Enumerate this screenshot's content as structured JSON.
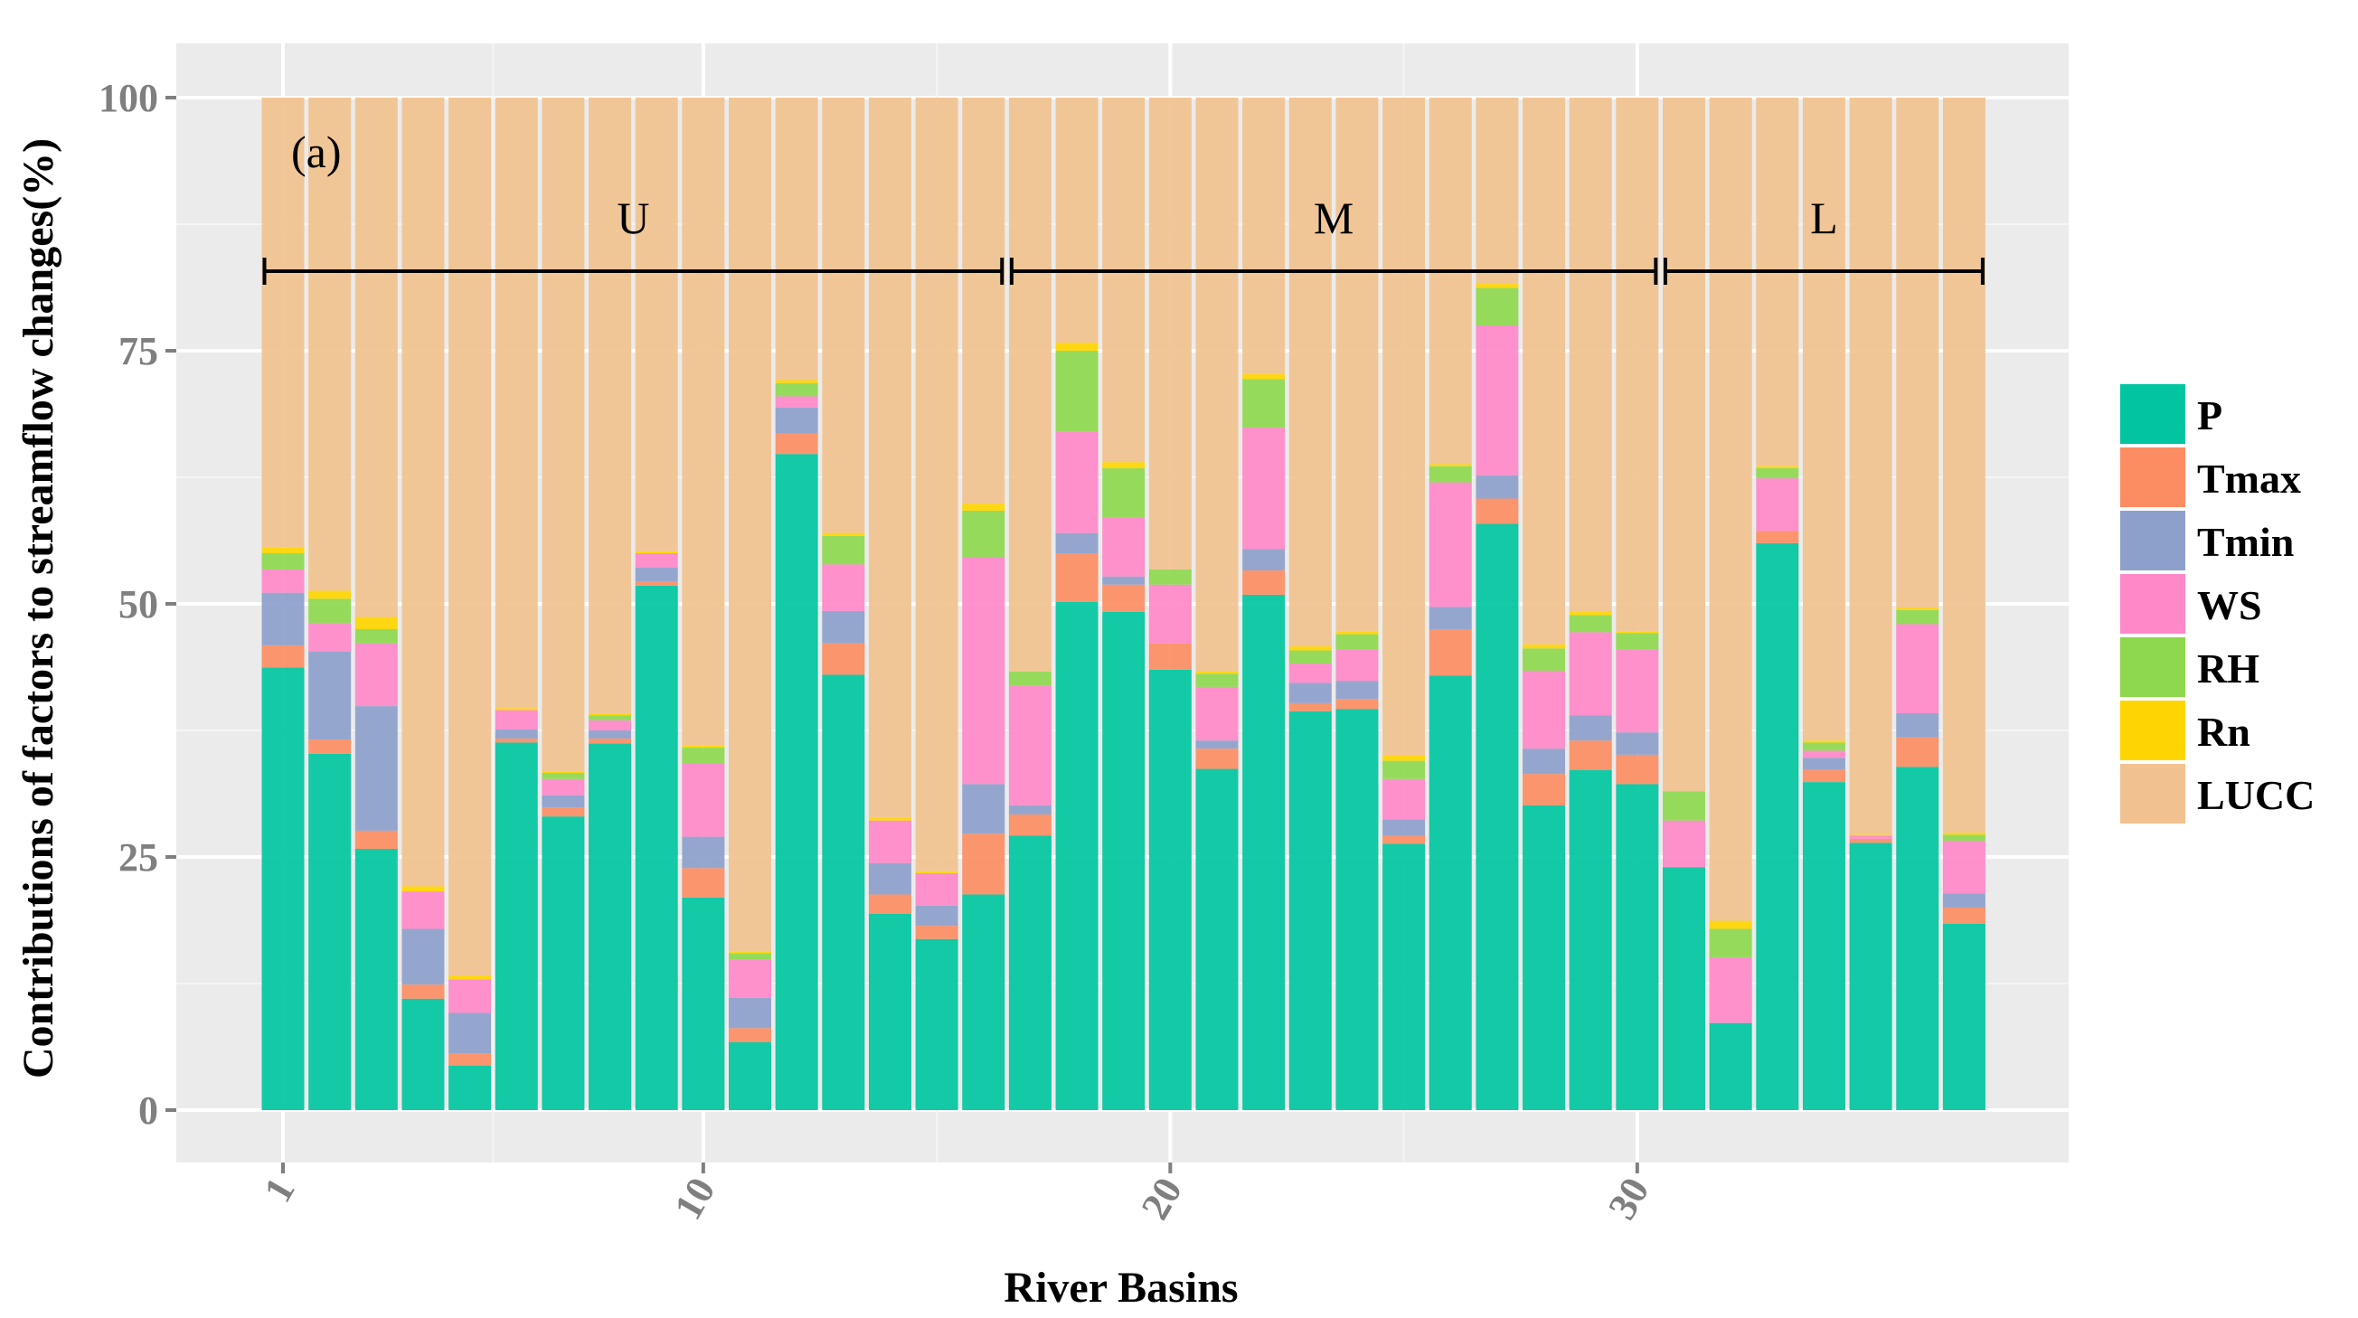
{
  "chart_data": {
    "type": "bar",
    "stacked": true,
    "panel_label": "(a)",
    "title": "",
    "xlabel": "River Basins",
    "ylabel": "Contributions of factors to  streamflow changes(%)",
    "ylim": [
      0,
      100
    ],
    "yticks": [
      "0",
      "25",
      "50",
      "75",
      "100"
    ],
    "xticks": [
      "1",
      "10",
      "20",
      "30"
    ],
    "categories": [
      "1",
      "2",
      "3",
      "4",
      "5",
      "6",
      "7",
      "8",
      "9",
      "10",
      "11",
      "12",
      "13",
      "14",
      "15",
      "16",
      "17",
      "18",
      "19",
      "20",
      "21",
      "22",
      "23",
      "24",
      "25",
      "26",
      "27",
      "28",
      "29",
      "30",
      "31",
      "32",
      "33",
      "34",
      "35",
      "36",
      "37"
    ],
    "legend": {
      "placement": "right"
    },
    "groups": [
      {
        "label": "U",
        "from": 1,
        "to": 16
      },
      {
        "label": "M",
        "from": 17,
        "to": 30
      },
      {
        "label": "L",
        "from": 31,
        "to": 37
      }
    ],
    "series": [
      {
        "name": "P",
        "color": "#00c5a0",
        "values": [
          43.7,
          35.2,
          25.8,
          11.0,
          4.4,
          36.3,
          29.0,
          36.2,
          51.8,
          21.0,
          6.7,
          64.8,
          43.0,
          19.4,
          16.9,
          21.3,
          27.1,
          50.2,
          49.2,
          43.5,
          33.7,
          50.9,
          39.4,
          39.6,
          26.3,
          42.9,
          57.9,
          30.1,
          33.6,
          32.2,
          24.0,
          8.6,
          56.0,
          32.4,
          26.4,
          33.9,
          18.4
        ]
      },
      {
        "name": "Tmax",
        "color": "#fc8d62",
        "values": [
          2.2,
          1.4,
          1.8,
          1.4,
          1.2,
          0.4,
          0.9,
          0.5,
          0.4,
          2.9,
          1.4,
          2.0,
          3.1,
          1.9,
          1.3,
          6.0,
          2.1,
          4.8,
          2.7,
          2.6,
          2.0,
          2.4,
          0.8,
          1.0,
          0.8,
          4.6,
          2.5,
          3.1,
          2.9,
          2.9,
          0,
          0,
          1.2,
          1.2,
          0.4,
          2.9,
          1.6
        ]
      },
      {
        "name": "Tmin",
        "color": "#8da0cb",
        "values": [
          5.2,
          8.7,
          12.3,
          5.5,
          4.0,
          0.9,
          1.2,
          0.8,
          1.4,
          3.1,
          3.0,
          2.6,
          3.2,
          3.1,
          2.0,
          4.9,
          0.9,
          2.0,
          0.8,
          0,
          0.8,
          2.1,
          2.0,
          1.8,
          1.6,
          2.2,
          2.3,
          2.5,
          2.5,
          2.2,
          0,
          0,
          0,
          1.2,
          0,
          2.4,
          1.4
        ]
      },
      {
        "name": "WS",
        "color": "#ff88c9",
        "values": [
          2.3,
          2.8,
          6.2,
          3.7,
          3.3,
          1.9,
          1.6,
          1.0,
          1.4,
          7.2,
          3.8,
          1.1,
          4.6,
          4.2,
          3.2,
          22.4,
          11.8,
          10.0,
          5.8,
          5.8,
          5.3,
          12.0,
          1.9,
          3.1,
          4.0,
          12.3,
          14.8,
          7.7,
          8.2,
          8.2,
          4.6,
          6.5,
          5.2,
          0.7,
          0.3,
          8.8,
          5.2
        ]
      },
      {
        "name": "RH",
        "color": "#8ed84f",
        "values": [
          1.6,
          2.4,
          1.4,
          0,
          0,
          0,
          0.6,
          0.5,
          0,
          1.6,
          0.6,
          1.3,
          2.8,
          0,
          0,
          4.6,
          1.4,
          8.0,
          4.9,
          1.5,
          1.3,
          4.8,
          1.3,
          1.5,
          1.8,
          1.6,
          3.7,
          2.2,
          1.7,
          1.6,
          2.9,
          2.8,
          1.0,
          0.8,
          0,
          1.4,
          0.6
        ]
      },
      {
        "name": "Rn",
        "color": "#ffd500",
        "values": [
          0.6,
          0.8,
          1.2,
          0.5,
          0.4,
          0.2,
          0.1,
          0.2,
          0.2,
          0.2,
          0.2,
          0.3,
          0.3,
          0.3,
          0.2,
          0.7,
          0,
          0.8,
          0.6,
          0,
          0.2,
          0.5,
          0.4,
          0.3,
          0.5,
          0.2,
          0.4,
          0.4,
          0.3,
          0.2,
          0,
          0.8,
          0.2,
          0.2,
          0.1,
          0.2,
          0.2
        ]
      },
      {
        "name": "LUCC",
        "color": "#f1c28f",
        "values": [
          44.4,
          48.7,
          51.3,
          77.9,
          86.7,
          60.3,
          66.6,
          60.8,
          44.8,
          64.0,
          84.3,
          27.9,
          43.0,
          71.1,
          76.4,
          40.1,
          56.7,
          24.2,
          36.0,
          46.6,
          56.7,
          27.3,
          54.2,
          52.7,
          65.0,
          36.2,
          18.4,
          54.0,
          50.8,
          52.7,
          68.5,
          81.3,
          36.4,
          63.5,
          72.8,
          50.4,
          72.6
        ]
      }
    ]
  }
}
